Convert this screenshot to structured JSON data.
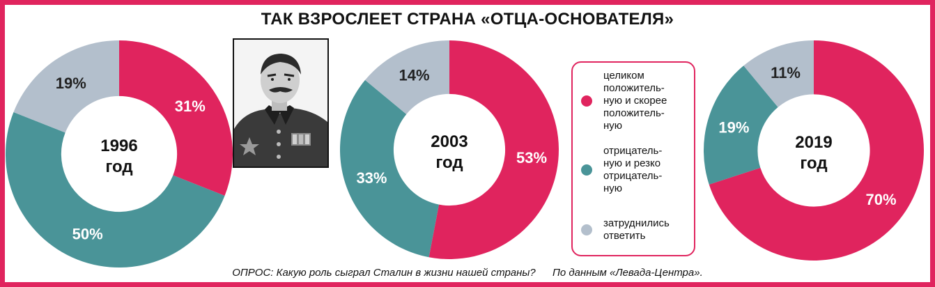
{
  "title": "ТАК ВЗРОСЛЕЕТ СТРАНА «ОТЦА-ОСНОВАТЕЛЯ»",
  "colors": {
    "positive": "#e0245e",
    "negative": "#4a9498",
    "undecided": "#b3bfcc",
    "frame": "#e0245e"
  },
  "chart_data": [
    {
      "type": "pie",
      "donut": true,
      "center_label": [
        "1996",
        "год"
      ],
      "series": [
        {
          "name": "целиком положитель-ную и скорее положитель-ную",
          "value": 31,
          "label": "31%"
        },
        {
          "name": "отрицатель-ную и резко отрицатель-ную",
          "value": 50,
          "label": "50%"
        },
        {
          "name": "затруднились ответить",
          "value": 19,
          "label": "19%"
        }
      ]
    },
    {
      "type": "pie",
      "donut": true,
      "center_label": [
        "2003",
        "год"
      ],
      "series": [
        {
          "name": "целиком положитель-ную и скорее положитель-ную",
          "value": 53,
          "label": "53%"
        },
        {
          "name": "отрицатель-ную и резко отрицатель-ную",
          "value": 33,
          "label": "33%"
        },
        {
          "name": "затруднились ответить",
          "value": 14,
          "label": "14%"
        }
      ]
    },
    {
      "type": "pie",
      "donut": true,
      "center_label": [
        "2019",
        "год"
      ],
      "series": [
        {
          "name": "целиком положитель-ную и скорее положитель-ную",
          "value": 70,
          "label": "70%"
        },
        {
          "name": "отрицатель-ную и резко отрицатель-ную",
          "value": 19,
          "label": "19%"
        },
        {
          "name": "затруднились ответить",
          "value": 11,
          "label": "11%"
        }
      ]
    }
  ],
  "legend": [
    {
      "key": "positive",
      "lines": [
        "целиком",
        "положитель-",
        "ную и скорее",
        "положитель-",
        "ную"
      ]
    },
    {
      "key": "negative",
      "lines": [
        "отрицатель-",
        "ную и резко",
        "отрицатель-",
        "ную"
      ]
    },
    {
      "key": "undecided",
      "lines": [
        "затруднились",
        "ответить"
      ]
    }
  ],
  "footer": {
    "question": "ОПРОС: Какую роль сыграл Сталин в жизни нашей страны?",
    "source": "По данным «Левада-Центра»."
  }
}
